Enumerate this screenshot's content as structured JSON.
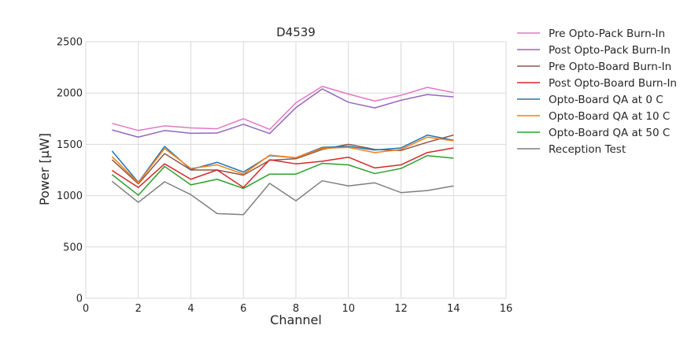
{
  "chart_data": {
    "type": "line",
    "title": "D4539",
    "xlabel": "Channel",
    "ylabel": "Power [μW]",
    "xlim": [
      0,
      16
    ],
    "ylim": [
      0,
      2500
    ],
    "xticks": [
      0,
      2,
      4,
      6,
      8,
      10,
      12,
      14,
      16
    ],
    "yticks": [
      0,
      500,
      1000,
      1500,
      2000,
      2500
    ],
    "grid": true,
    "legend_position": "outside-right",
    "x": [
      1,
      2,
      3,
      4,
      5,
      6,
      7,
      8,
      9,
      10,
      11,
      12,
      13,
      14
    ],
    "series": [
      {
        "name": "Pre Opto-Pack Burn-In",
        "color": "#e377c2",
        "values": [
          1705,
          1635,
          1680,
          1660,
          1652,
          1750,
          1645,
          1905,
          2065,
          1990,
          1922,
          1978,
          2055,
          2005
        ]
      },
      {
        "name": "Post Opto-Pack Burn-In",
        "color": "#9467bd",
        "values": [
          1640,
          1570,
          1635,
          1608,
          1610,
          1695,
          1605,
          1858,
          2040,
          1910,
          1855,
          1930,
          1985,
          1962
        ]
      },
      {
        "name": "Pre Opto-Board Burn-In",
        "color": "#8c564b",
        "values": [
          1350,
          1115,
          1410,
          1250,
          1250,
          1200,
          1345,
          1360,
          1450,
          1500,
          1450,
          1440,
          1520,
          1590
        ]
      },
      {
        "name": "Post Opto-Board Burn-In",
        "color": "#d62728",
        "values": [
          1245,
          1080,
          1310,
          1160,
          1250,
          1080,
          1350,
          1310,
          1335,
          1375,
          1270,
          1300,
          1420,
          1465
        ]
      },
      {
        "name": "Opto-Board QA at 0 C",
        "color": "#1f77b4",
        "values": [
          1435,
          1130,
          1480,
          1255,
          1325,
          1230,
          1390,
          1370,
          1470,
          1480,
          1445,
          1465,
          1590,
          1540
        ]
      },
      {
        "name": "Opto-Board QA at 10 C",
        "color": "#ff7f0e",
        "values": [
          1380,
          1125,
          1460,
          1265,
          1300,
          1210,
          1395,
          1370,
          1460,
          1470,
          1420,
          1450,
          1570,
          1535
        ]
      },
      {
        "name": "Opto-Board QA at 50 C",
        "color": "#2ca02c",
        "values": [
          1205,
          1005,
          1285,
          1105,
          1160,
          1070,
          1210,
          1210,
          1315,
          1300,
          1215,
          1265,
          1390,
          1365
        ]
      },
      {
        "name": "Reception Test",
        "color": "#7f7f7f",
        "values": [
          1140,
          935,
          1135,
          1010,
          825,
          815,
          1120,
          950,
          1145,
          1095,
          1125,
          1030,
          1050,
          1095
        ]
      }
    ]
  }
}
